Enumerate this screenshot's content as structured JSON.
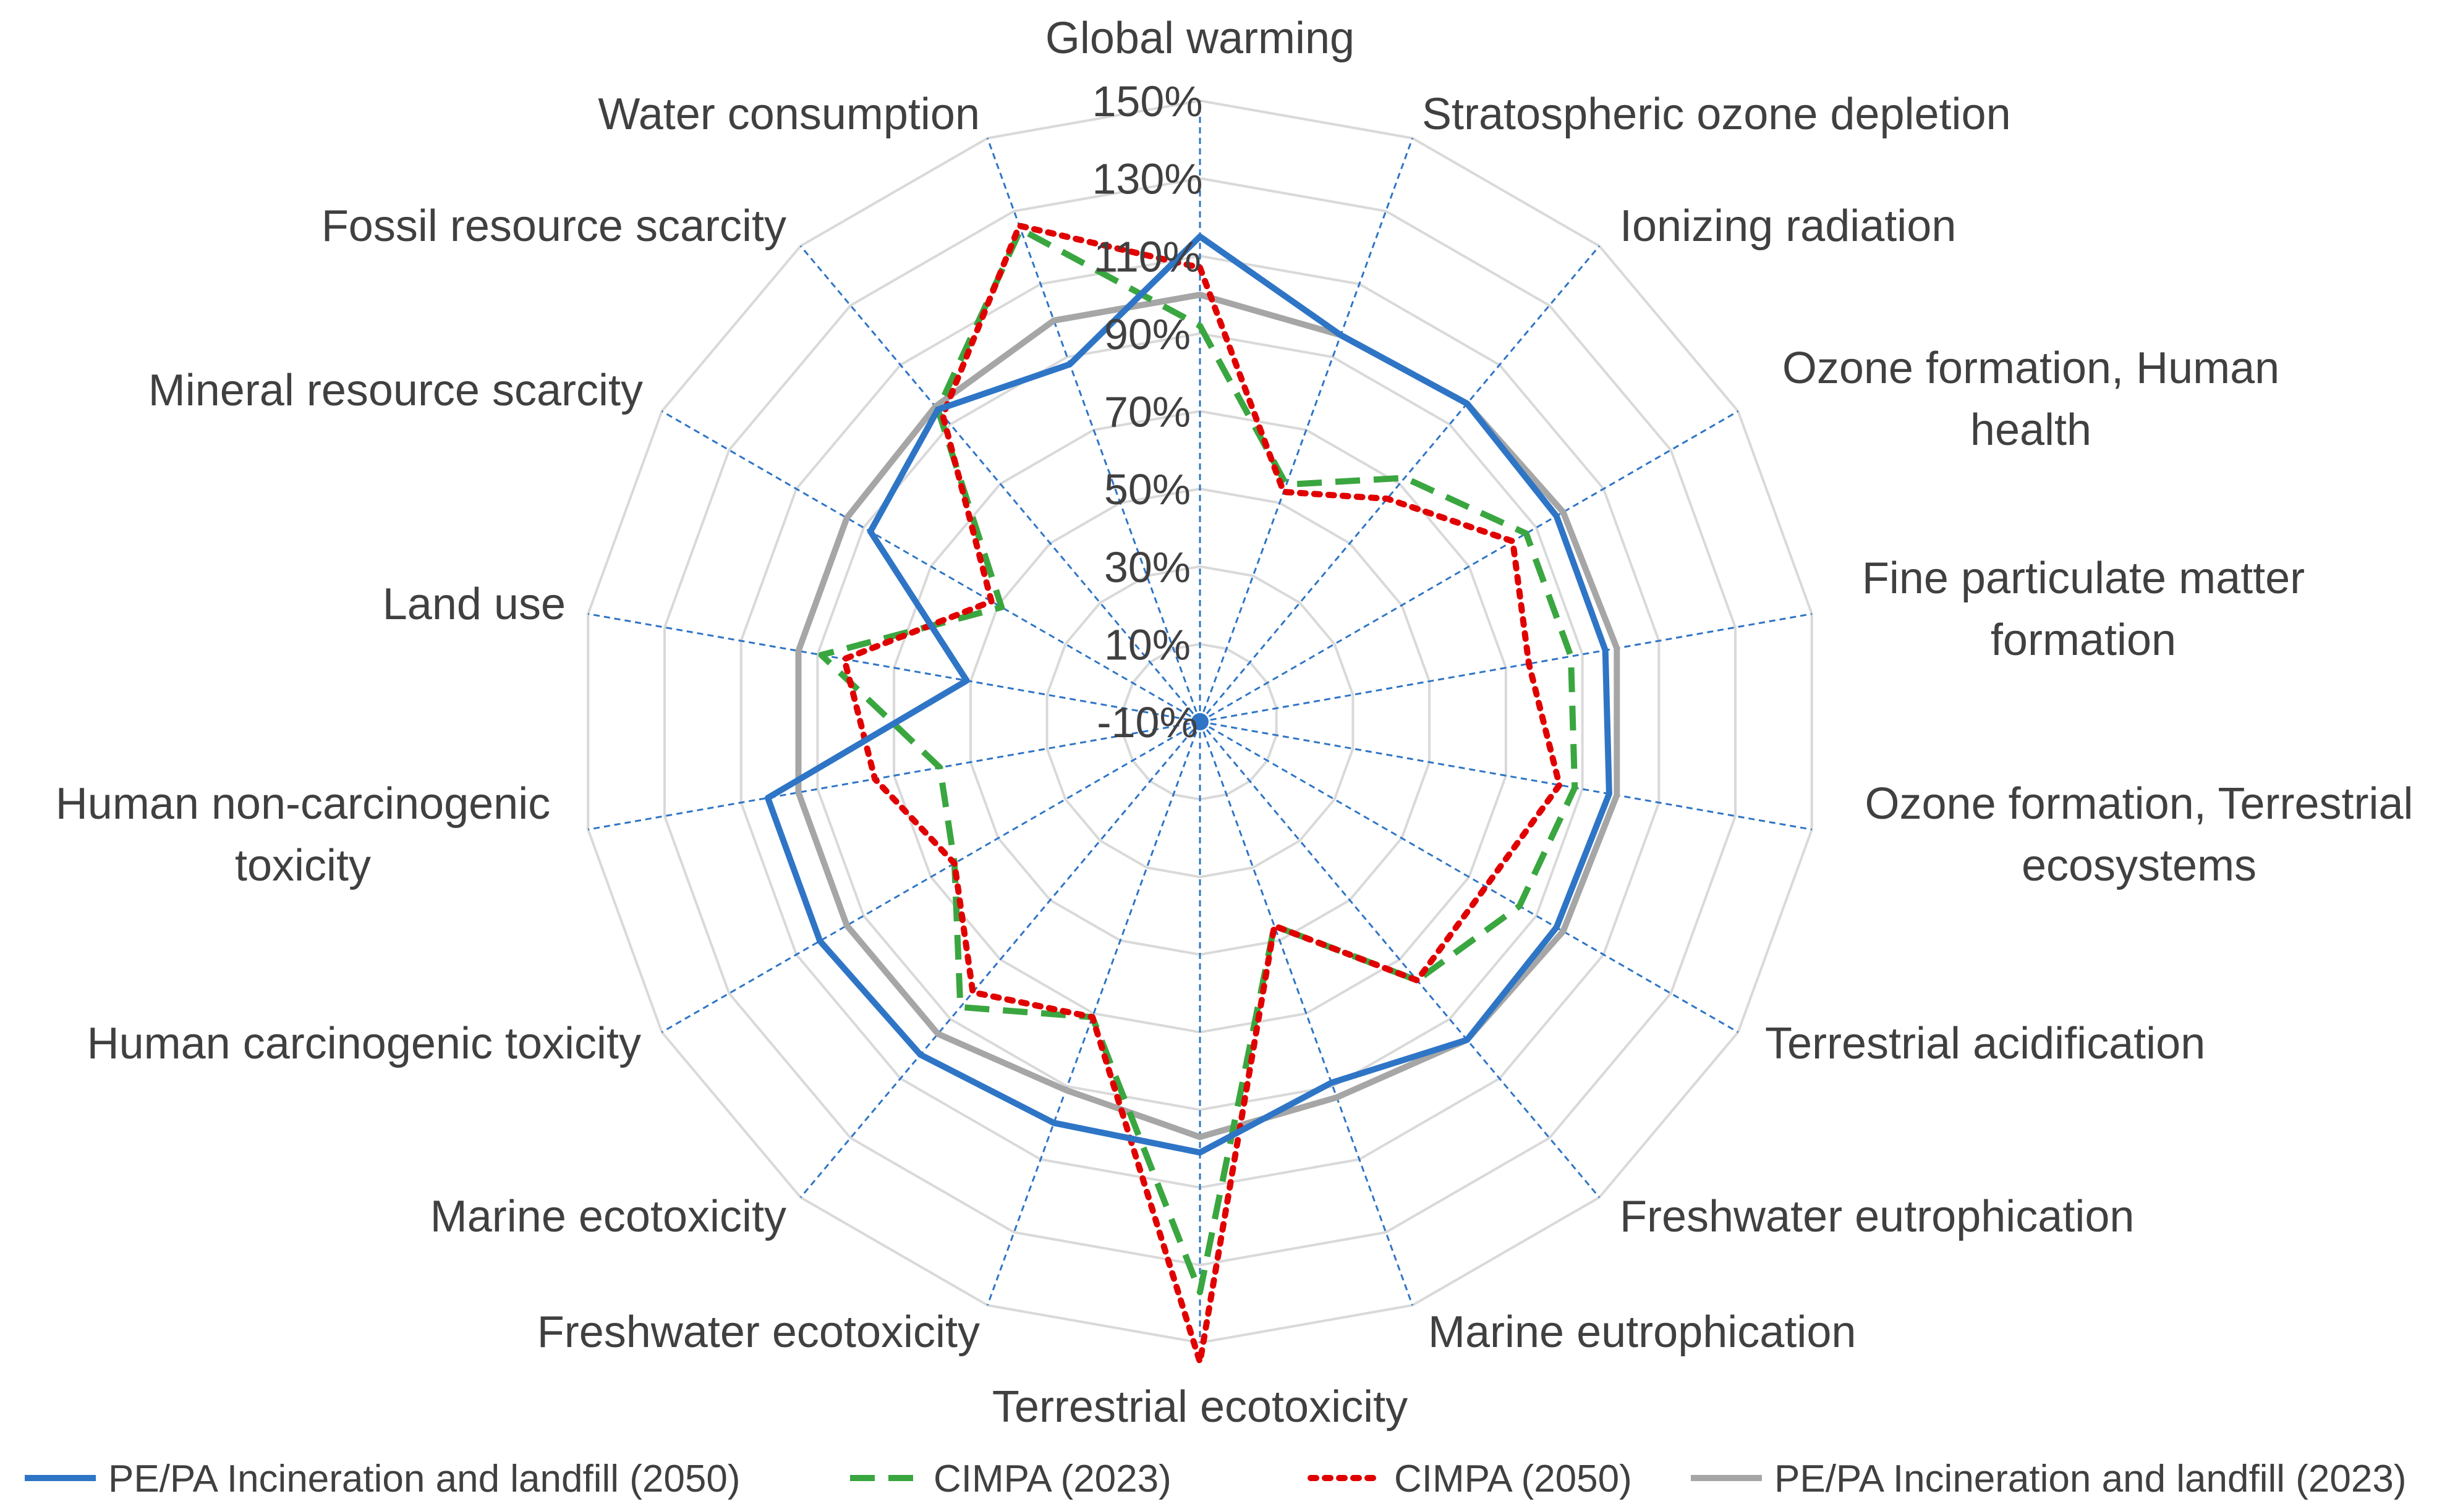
{
  "chart_data": {
    "type": "radar",
    "title": "",
    "rlim": [
      -10,
      150
    ],
    "rticks": [
      "-10%",
      "10%",
      "30%",
      "50%",
      "70%",
      "90%",
      "110%",
      "130%",
      "150%"
    ],
    "rtick_values": [
      -10,
      10,
      30,
      50,
      70,
      90,
      110,
      130,
      150
    ],
    "grid": true,
    "legend_position": "bottom",
    "categories": [
      "Global warming",
      "Stratospheric ozone depletion",
      "Ionizing radiation",
      "Ozone formation, Human health",
      "Fine particulate matter formation",
      "Ozone formation, Terrestrial ecosystems",
      "Terrestrial acidification",
      "Freshwater eutrophication",
      "Marine eutrophication",
      "Terrestrial ecotoxicity",
      "Freshwater ecotoxicity",
      "Marine ecotoxicity",
      "Human carcinogenic toxicity",
      "Human non-carcinogenic toxicity",
      "Land use",
      "Mineral resource scarcity",
      "Fossil resource scarcity",
      "Water consumption"
    ],
    "series": [
      {
        "name": "PE/PA Incineration and landfill (2050)",
        "color": "#2e75c6",
        "style": "solid",
        "values": [
          115,
          96,
          97,
          96,
          96,
          97,
          96,
          97,
          89,
          101,
          100,
          102,
          103,
          103,
          51,
          88,
          95,
          88
        ]
      },
      {
        "name": "CIMPA (2023)",
        "color": "#3aa640",
        "style": "dashed",
        "values": [
          92,
          55,
          72,
          87,
          87,
          88,
          85,
          77,
          46,
          137,
          71,
          86,
          63,
          58,
          89,
          49,
          95,
          125
        ]
      },
      {
        "name": "CIMPA (2050)",
        "color": "#e00000",
        "style": "dotted",
        "values": [
          107,
          53,
          65,
          83,
          76,
          84,
          75,
          77,
          46,
          155,
          71,
          81,
          63,
          75,
          83,
          52,
          93,
          126
        ]
      },
      {
        "name": "PE/PA Incineration and landfill (2023)",
        "color": "#a6a6a6",
        "style": "solid",
        "values": [
          100,
          96,
          97,
          98,
          99,
          99,
          98,
          97,
          93,
          97,
          91,
          95,
          95,
          95,
          95,
          95,
          96,
          100
        ]
      }
    ]
  }
}
